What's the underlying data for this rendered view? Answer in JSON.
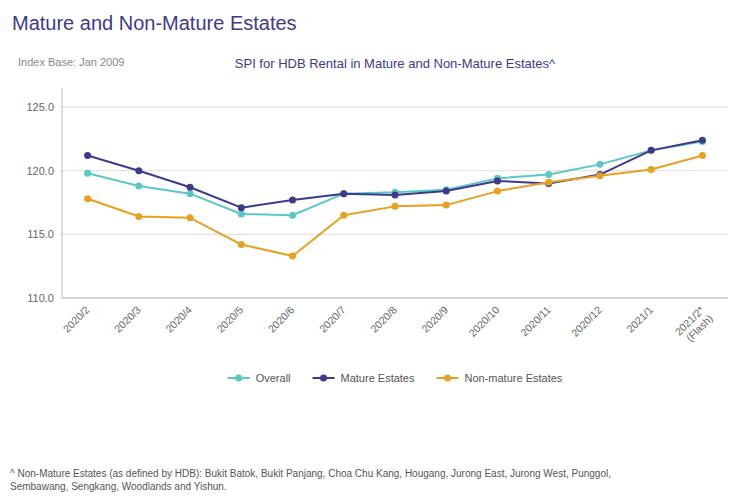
{
  "chart_data": {
    "type": "line",
    "title": "Mature and Non-Mature Estates",
    "subtitle": "SPI for HDB Rental in Mature and Non-Mature Estates^",
    "annotations": [
      "Index Base: Jan 2009",
      "^ Non-Mature Estates (as defined by HDB): Bukit Batok, Bukit Panjang, Choa Chu Kang, Hougang, Jurong East, Jurong West, Punggol,\nSembawang, Sengkang, Woodlands and Yishun."
    ],
    "categories": [
      "2020/2",
      "2020/3",
      "2020/4",
      "2020/5",
      "2020/6",
      "2020/7",
      "2020/8",
      "2020/9",
      "2020/10",
      "2020/11",
      "2020/12",
      "2021/1",
      "2021/2*\n(Flash)"
    ],
    "series": [
      {
        "name": "Overall",
        "color": "#5BC8C8",
        "marker": "circle",
        "line_style": "solid",
        "values": [
          119.8,
          118.8,
          118.2,
          116.6,
          116.5,
          118.2,
          118.3,
          118.5,
          119.4,
          119.7,
          120.5,
          121.6,
          122.3
        ]
      },
      {
        "name": "Mature Estates",
        "color": "#3D3A8C",
        "marker": "circle",
        "line_style": "solid",
        "values": [
          121.2,
          120.0,
          118.7,
          117.1,
          117.7,
          118.2,
          118.1,
          118.4,
          119.2,
          119.0,
          119.7,
          121.6,
          122.4
        ]
      },
      {
        "name": "Non-mature Estates",
        "color": "#E8A020",
        "marker": "circle",
        "line_style": "solid",
        "values": [
          117.8,
          116.4,
          116.3,
          114.2,
          113.3,
          116.5,
          117.2,
          117.3,
          118.4,
          119.1,
          119.6,
          120.1,
          121.2
        ]
      }
    ],
    "ylim": [
      110.0,
      126.5
    ],
    "yticks": [
      {
        "value": 110.0,
        "label": "110.0"
      },
      {
        "value": 115.0,
        "label": "115.0"
      },
      {
        "value": 120.0,
        "label": "120.0"
      },
      {
        "value": 125.0,
        "label": "125.0"
      }
    ],
    "grid": true,
    "legend": "bottom"
  }
}
